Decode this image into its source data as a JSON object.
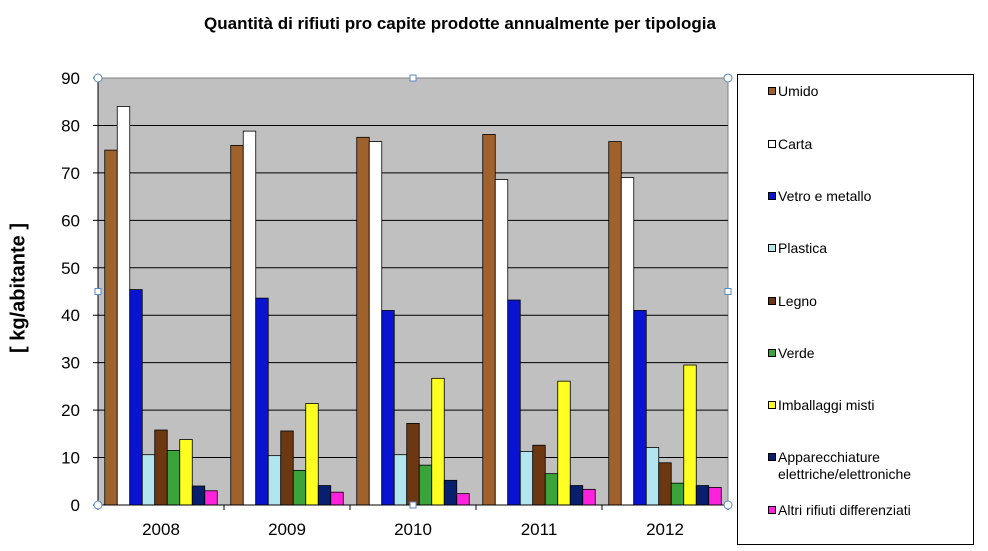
{
  "chart_data": {
    "type": "bar",
    "title": "Quantità di rifiuti pro capite prodotte annualmente per tipologia",
    "ylabel": "[ kg/abitante ]",
    "xlabel": "",
    "ylim": [
      0,
      90
    ],
    "yticks": [
      0,
      10,
      20,
      30,
      40,
      50,
      60,
      70,
      80,
      90
    ],
    "grid": true,
    "legend_position": "right",
    "categories": [
      "2008",
      "2009",
      "2010",
      "2011",
      "2012"
    ],
    "series": [
      {
        "name": "Umido",
        "color": "#a0622d",
        "values": [
          74.8,
          75.8,
          77.5,
          78.1,
          76.6
        ]
      },
      {
        "name": "Carta",
        "color": "#ffffff",
        "values": [
          84.0,
          78.8,
          76.6,
          68.6,
          69.0
        ]
      },
      {
        "name": "Vetro e metallo",
        "color": "#0a14d0",
        "values": [
          45.4,
          43.6,
          41.0,
          43.2,
          41.0
        ]
      },
      {
        "name": "Plastica",
        "color": "#b3e5ef",
        "values": [
          10.6,
          10.4,
          10.6,
          11.3,
          12.1
        ]
      },
      {
        "name": "Legno",
        "color": "#6b3812",
        "values": [
          15.8,
          15.6,
          17.2,
          12.6,
          8.9
        ]
      },
      {
        "name": "Verde",
        "color": "#3aa43a",
        "values": [
          11.5,
          7.3,
          8.4,
          6.6,
          4.6
        ]
      },
      {
        "name": "Imballaggi misti",
        "color": "#ffff22",
        "values": [
          13.8,
          21.4,
          26.7,
          26.1,
          29.5
        ]
      },
      {
        "name": "Apparecchiature elettriche/elettroniche",
        "color": "#081e6e",
        "values": [
          4.0,
          4.1,
          5.2,
          4.1,
          4.1
        ]
      },
      {
        "name": "Altri rifiuti differenziati",
        "color": "#ff22dd",
        "values": [
          3.0,
          2.7,
          2.4,
          3.3,
          3.7
        ]
      }
    ]
  }
}
